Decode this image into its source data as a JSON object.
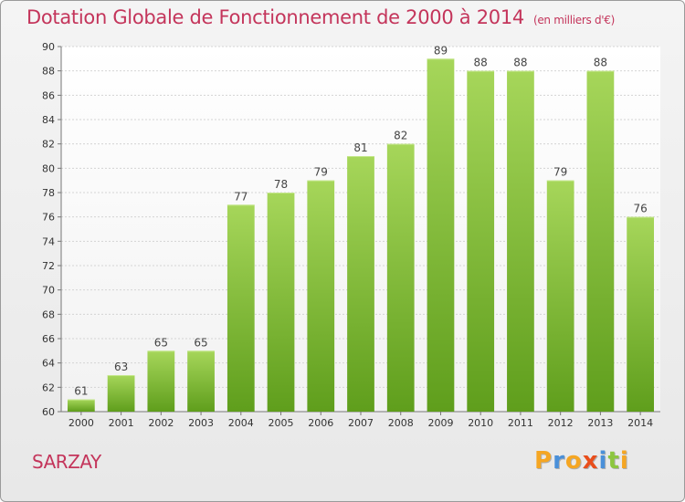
{
  "chart_data": {
    "type": "bar",
    "title": "Dotation Globale de Fonctionnement de 2000 à 2014",
    "subtitle": "(en milliers d'€)",
    "categories": [
      "2000",
      "2001",
      "2002",
      "2003",
      "2004",
      "2005",
      "2006",
      "2007",
      "2008",
      "2009",
      "2010",
      "2011",
      "2012",
      "2013",
      "2014"
    ],
    "values": [
      61,
      63,
      65,
      65,
      77,
      78,
      79,
      81,
      82,
      89,
      88,
      88,
      79,
      88,
      76
    ],
    "ylim": [
      60,
      90
    ],
    "yticks": [
      60,
      62,
      64,
      66,
      68,
      70,
      72,
      74,
      76,
      78,
      80,
      82,
      84,
      86,
      88,
      90
    ],
    "grid": true,
    "bar_color": "#8cc63f",
    "title_color": "#c4355b"
  },
  "commune": "SARZAY",
  "logo": {
    "letters": [
      "P",
      "r",
      "o",
      "x",
      "i",
      "t",
      "i"
    ],
    "colors": [
      "#f5a623",
      "#4a90d9",
      "#f5a623",
      "#e94e1b",
      "#4a90d9",
      "#8cc63f",
      "#f5a623"
    ]
  }
}
